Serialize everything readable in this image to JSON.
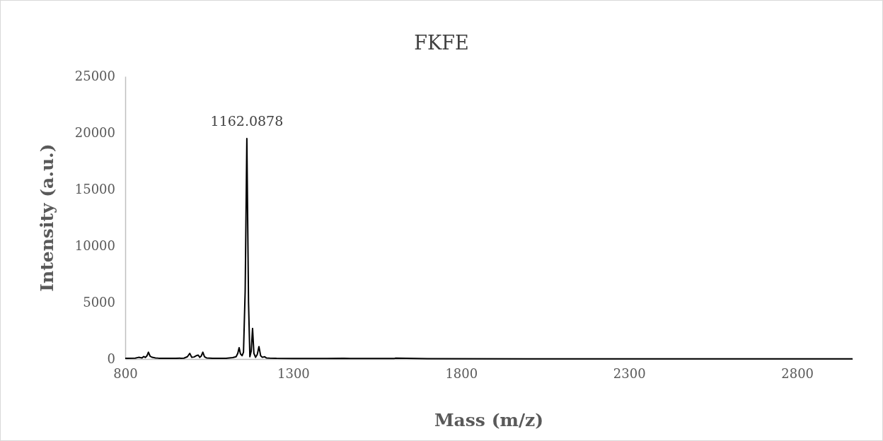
{
  "chart_data": {
    "type": "line",
    "title": "FKFE",
    "xlabel": "Mass (m/z)",
    "ylabel": "Intensity (a.u.)",
    "xlim": [
      800,
      2965
    ],
    "xticks": [
      800,
      1300,
      1800,
      2300,
      2800
    ],
    "ylim": [
      0,
      25000
    ],
    "yticks": [
      0,
      5000,
      10000,
      15000,
      20000,
      25000
    ],
    "grid": false,
    "annotations": [
      {
        "text": "1162.0878",
        "x": 1162.0878,
        "y": 19500
      }
    ],
    "series": [
      {
        "color": "#000000",
        "x": [
          800,
          830,
          840,
          850,
          855,
          860,
          865,
          869,
          874,
          880,
          890,
          900,
          950,
          975,
          985,
          992,
          998,
          1005,
          1012,
          1017,
          1022,
          1026,
          1031,
          1036,
          1042,
          1060,
          1100,
          1120,
          1130,
          1135,
          1139,
          1143,
          1148,
          1152,
          1157,
          1162,
          1167,
          1171,
          1175,
          1179,
          1183,
          1188,
          1193,
          1198,
          1203,
          1208,
          1215,
          1220,
          1230,
          1250,
          1300,
          1400,
          1450,
          1470,
          1500,
          1600,
          1605,
          1700,
          2000,
          2500,
          2965
        ],
        "values": [
          60,
          80,
          150,
          100,
          220,
          140,
          300,
          600,
          250,
          150,
          100,
          70,
          60,
          80,
          200,
          500,
          150,
          180,
          300,
          350,
          150,
          250,
          600,
          200,
          100,
          70,
          60,
          120,
          200,
          500,
          1000,
          450,
          300,
          600,
          6000,
          19500,
          5000,
          200,
          700,
          2700,
          500,
          150,
          400,
          1100,
          300,
          150,
          200,
          100,
          80,
          60,
          50,
          50,
          70,
          40,
          40,
          40,
          80,
          30,
          20,
          20,
          20
        ]
      }
    ]
  }
}
